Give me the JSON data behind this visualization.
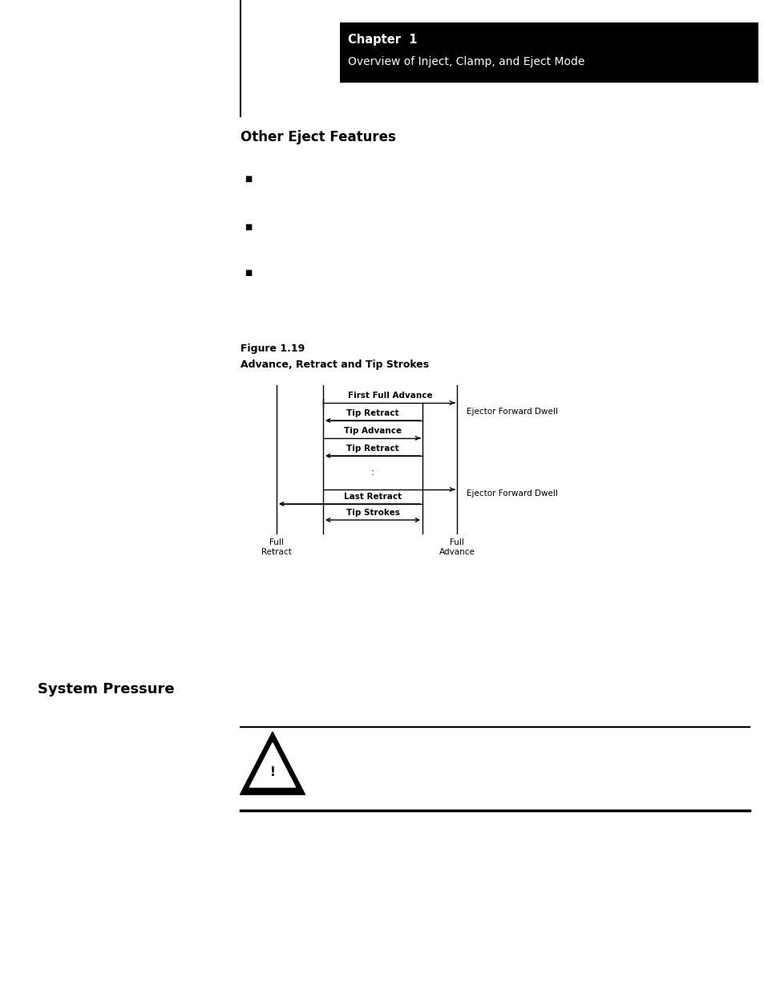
{
  "bg_color": "#ffffff",
  "chapter_box_color": "#000000",
  "chapter_text_color": "#ffffff",
  "chapter_line1": "Chapter  1",
  "chapter_line2": "Overview of Inject, Clamp, and Eject Mode",
  "section_title": "Other Eject Features",
  "figure_label": "Figure 1.19",
  "figure_title": "Advance, Retract and Tip Strokes",
  "system_pressure_title": "System Pressure",
  "labels": {
    "first_full_advance": "First Full Advance",
    "tip_retract1": "Tip Retract",
    "tip_advance": "Tip Advance",
    "tip_retract2": "Tip Retract",
    "last_retract": "Last Retract",
    "tip_strokes": "Tip Strokes",
    "ejector_dwell1": "Ejector Forward Dwell",
    "ejector_dwell2": "Ejector Forward Dwell",
    "full_retract": "Full\nRetract",
    "full_advance": "Full\nAdvance"
  }
}
